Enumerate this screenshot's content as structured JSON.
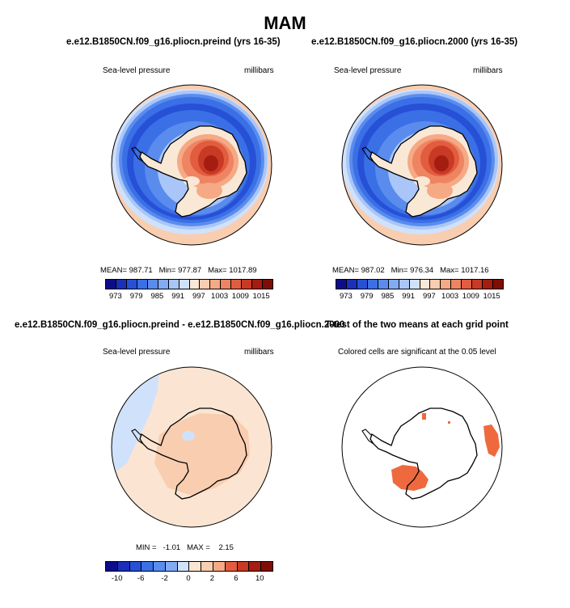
{
  "figure": {
    "title": "MAM",
    "case1_title": "e.e12.B1850CN.f09_g16.pliocn.preind (yrs 16-35)",
    "case2_title": "e.e12.B1850CN.f09_g16.pliocn.2000 (yrs 16-35)",
    "diff_title": "e.e12.B1850CN.f09_g16.pliocn.preind - e.e12.B1850CN.f09_g16.pliocn.2000",
    "ttest_title": "T-test of the two means at each grid point"
  },
  "panels": {
    "p1": {
      "variable": "Sea-level pressure",
      "units": "millibars",
      "mean_label": "MEAN=",
      "mean_value": "987.71",
      "min_label": "Min=",
      "min_value": "977.87",
      "max_label": "Max=",
      "max_value": "1017.89"
    },
    "p2": {
      "variable": "Sea-level pressure",
      "units": "millibars",
      "mean_label": "MEAN=",
      "mean_value": "987.02",
      "min_label": "Min=",
      "min_value": "976.34",
      "max_label": "Max=",
      "max_value": "1017.16"
    },
    "p3": {
      "variable": "Sea-level pressure",
      "units": "millibars",
      "min_label": "MIN =",
      "min_value": "-1.01",
      "max_label": "MAX =",
      "max_value": "2.15"
    },
    "p4": {
      "note": "Colored cells are significant at the 0.05 level"
    }
  },
  "chart_data": [
    {
      "type": "heatmap",
      "title": "e.e12.B1850CN.f09_g16.pliocn.preind (yrs 16-35)",
      "variable": "Sea-level pressure",
      "units": "millibars",
      "mean": 987.71,
      "min": 977.87,
      "max": 1017.89,
      "levels": [
        973,
        976,
        979,
        982,
        985,
        988,
        991,
        994,
        997,
        1000,
        1003,
        1006,
        1009,
        1012,
        1015
      ],
      "tick_labels": [
        "973",
        "979",
        "985",
        "991",
        "997",
        "1003",
        "1009",
        "1015"
      ],
      "colors": [
        "#0d0d8a",
        "#1b2fb8",
        "#2650d6",
        "#3a6fe6",
        "#5a8cee",
        "#82abf4",
        "#aac6f8",
        "#d0e2fb",
        "#fae8d6",
        "#f9cdb0",
        "#f5a985",
        "#ee8462",
        "#e25c40",
        "#c83a24",
        "#a51c10",
        "#7e0d06"
      ]
    },
    {
      "type": "heatmap",
      "title": "e.e12.B1850CN.f09_g16.pliocn.2000 (yrs 16-35)",
      "variable": "Sea-level pressure",
      "units": "millibars",
      "mean": 987.02,
      "min": 976.34,
      "max": 1017.16,
      "levels": [
        973,
        976,
        979,
        982,
        985,
        988,
        991,
        994,
        997,
        1000,
        1003,
        1006,
        1009,
        1012,
        1015
      ],
      "tick_labels": [
        "973",
        "979",
        "985",
        "991",
        "997",
        "1003",
        "1009",
        "1015"
      ],
      "colors": [
        "#0d0d8a",
        "#1b2fb8",
        "#2650d6",
        "#3a6fe6",
        "#5a8cee",
        "#82abf4",
        "#aac6f8",
        "#d0e2fb",
        "#fae8d6",
        "#f9cdb0",
        "#f5a985",
        "#ee8462",
        "#e25c40",
        "#c83a24",
        "#a51c10",
        "#7e0d06"
      ]
    },
    {
      "type": "heatmap",
      "title": "e.e12.B1850CN.f09_g16.pliocn.preind - e.e12.B1850CN.f09_g16.pliocn.2000",
      "variable": "Sea-level pressure",
      "units": "millibars",
      "min": -1.01,
      "max": 2.15,
      "levels": [
        -10,
        -8,
        -6,
        -4,
        -2,
        -1,
        0,
        1,
        2,
        4,
        6,
        8,
        10
      ],
      "tick_labels": [
        "-10",
        "-6",
        "-2",
        "0",
        "2",
        "6",
        "10"
      ],
      "colors": [
        "#0d0d8a",
        "#1b2fb8",
        "#2650d6",
        "#3a6fe6",
        "#5a8cee",
        "#82abf4",
        "#d0e2fb",
        "#fbe5d2",
        "#f9cdb0",
        "#f5a985",
        "#e25c40",
        "#c83a24",
        "#a51c10",
        "#7e0d06"
      ]
    },
    {
      "type": "heatmap",
      "title": "T-test of the two means at each grid point",
      "subtitle": "Colored cells are significant at the 0.05 level"
    }
  ]
}
